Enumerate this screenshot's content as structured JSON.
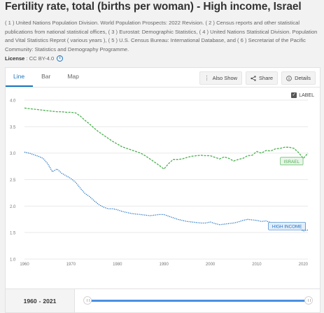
{
  "title": "Fertility rate, total (births per woman) - High income, Israel",
  "sources": "( 1 ) United Nations Population Division. World Population Prospects: 2022 Revision. ( 2 ) Census reports and other statistical publications from national statistical offices, ( 3 ) Eurostat: Demographic Statistics, ( 4 ) United Nations Statistical Division. Population and Vital Statistics Reprot ( various years ), ( 5 ) U.S. Census Bureau: International Database, and ( 6 ) Secretariat of the Pacific Community: Statistics and Demography Programme.",
  "license": {
    "label": "License",
    "sep": " : ",
    "value": "CC BY-4.0"
  },
  "tabs": [
    "Line",
    "Bar",
    "Map"
  ],
  "actions": {
    "also_show": "Also Show",
    "share": "Share",
    "details": "Details"
  },
  "label_toggle": "LABEL",
  "range": {
    "start": "1960",
    "dash": "-",
    "end": "2021"
  },
  "colors": {
    "israel": "#4caf50",
    "high_income": "#1a6fc0",
    "accent": "#1a76c2"
  },
  "icons": {
    "also_show": "vertical-dots-icon",
    "share": "share-icon",
    "details": "info-icon"
  },
  "chart_data": {
    "type": "line",
    "xlim": [
      1960,
      2021
    ],
    "ylim": [
      1.0,
      4.0
    ],
    "x_ticks": [
      "1960",
      "1970",
      "1980",
      "1990",
      "2000",
      "2010",
      "2020"
    ],
    "y_ticks": [
      "1.0",
      "1.5",
      "2.0",
      "2.5",
      "3.0",
      "3.5",
      "4.0"
    ],
    "grid": true,
    "x": [
      1960,
      1961,
      1962,
      1963,
      1964,
      1965,
      1966,
      1967,
      1968,
      1969,
      1970,
      1971,
      1972,
      1973,
      1974,
      1975,
      1976,
      1977,
      1978,
      1979,
      1980,
      1981,
      1982,
      1983,
      1984,
      1985,
      1986,
      1987,
      1988,
      1989,
      1990,
      1991,
      1992,
      1993,
      1994,
      1995,
      1996,
      1997,
      1998,
      1999,
      2000,
      2001,
      2002,
      2003,
      2004,
      2005,
      2006,
      2007,
      2008,
      2009,
      2010,
      2011,
      2012,
      2013,
      2014,
      2015,
      2016,
      2017,
      2018,
      2019,
      2020,
      2021
    ],
    "series": [
      {
        "name": "ISRAEL",
        "style": "dashed",
        "values": [
          3.85,
          3.84,
          3.83,
          3.82,
          3.81,
          3.8,
          3.79,
          3.78,
          3.78,
          3.77,
          3.77,
          3.76,
          3.7,
          3.62,
          3.55,
          3.47,
          3.4,
          3.34,
          3.28,
          3.22,
          3.17,
          3.12,
          3.09,
          3.06,
          3.03,
          3.0,
          2.95,
          2.89,
          2.83,
          2.77,
          2.7,
          2.8,
          2.88,
          2.88,
          2.89,
          2.92,
          2.94,
          2.95,
          2.96,
          2.95,
          2.95,
          2.92,
          2.89,
          2.93,
          2.9,
          2.85,
          2.88,
          2.9,
          2.95,
          2.96,
          3.03,
          3.0,
          3.05,
          3.04,
          3.08,
          3.09,
          3.11,
          3.11,
          3.09,
          3.01,
          2.9,
          3.0
        ]
      },
      {
        "name": "HIGH INCOME",
        "style": "dotted",
        "values": [
          3.02,
          3.0,
          2.97,
          2.94,
          2.9,
          2.8,
          2.65,
          2.7,
          2.62,
          2.57,
          2.52,
          2.45,
          2.34,
          2.24,
          2.18,
          2.1,
          2.03,
          1.98,
          1.95,
          1.95,
          1.93,
          1.9,
          1.88,
          1.86,
          1.85,
          1.84,
          1.83,
          1.82,
          1.83,
          1.84,
          1.84,
          1.81,
          1.78,
          1.75,
          1.73,
          1.71,
          1.7,
          1.69,
          1.68,
          1.68,
          1.7,
          1.67,
          1.65,
          1.66,
          1.67,
          1.68,
          1.7,
          1.73,
          1.75,
          1.74,
          1.73,
          1.71,
          1.72,
          1.69,
          1.69,
          1.68,
          1.68,
          1.65,
          1.62,
          1.59,
          1.53,
          1.55
        ]
      }
    ]
  }
}
